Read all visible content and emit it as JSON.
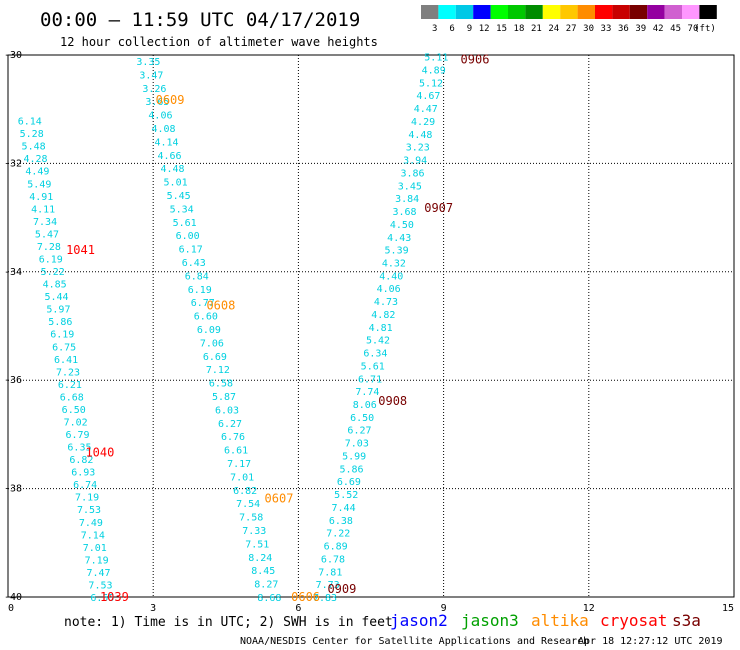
{
  "title": "00:00 – 11:59 UTC 04/17/2019",
  "subtitle": "12 hour collection of altimeter wave heights",
  "legend": {
    "unit": "(ft)",
    "bins": [
      {
        "label": "3",
        "color": "#7f7f7f"
      },
      {
        "label": "6",
        "color": "#00ffff"
      },
      {
        "label": "9",
        "color": "#00c8e6"
      },
      {
        "label": "12",
        "color": "#0000ff"
      },
      {
        "label": "15",
        "color": "#00ff00"
      },
      {
        "label": "18",
        "color": "#00c800"
      },
      {
        "label": "21",
        "color": "#008c00"
      },
      {
        "label": "24",
        "color": "#ffff00"
      },
      {
        "label": "27",
        "color": "#ffc800"
      },
      {
        "label": "30",
        "color": "#ff8c00"
      },
      {
        "label": "33",
        "color": "#ff0000"
      },
      {
        "label": "36",
        "color": "#c80000"
      },
      {
        "label": "39",
        "color": "#780000"
      },
      {
        "label": "42",
        "color": "#9400a0"
      },
      {
        "label": "45",
        "color": "#d060d0"
      },
      {
        "label": "70",
        "color": "#ff96ff"
      },
      {
        "label": "",
        "color": "#000000"
      }
    ]
  },
  "chart_data": {
    "type": "scatter",
    "xlim": [
      0,
      15
    ],
    "ylim": [
      -40,
      -30
    ],
    "x_ticks": [
      "0",
      "3",
      "6",
      "9",
      "12",
      "15"
    ],
    "y_ticks": [
      "-30",
      "-32",
      "-34",
      "-36",
      "-38",
      "-40"
    ],
    "grid": true,
    "value_color": "#00d0e0",
    "tracks": [
      {
        "start": [
          0.45,
          -31.21
        ],
        "end": [
          1.95,
          -40.0
        ],
        "values": [
          "6.14",
          "5.28",
          "5.48",
          "4.28",
          "4.49",
          "5.49",
          "4.91",
          "4.11",
          "7.34",
          "5.47",
          "7.28",
          "6.19",
          "5.22",
          "4.85",
          "5.44",
          "5.97",
          "5.86",
          "6.19",
          "6.75",
          "6.41",
          "7.23",
          "6.21",
          "6.68",
          "6.50",
          "7.02",
          "6.79",
          "6.35",
          "6.82",
          "6.93",
          "6.74",
          "7.19",
          "7.53",
          "7.49",
          "7.14",
          "7.01",
          "7.19",
          "7.47",
          "7.53",
          "6.55"
        ]
      },
      {
        "start": [
          2.9,
          -30.11
        ],
        "end": [
          5.4,
          -40.0
        ],
        "values": [
          "3.35",
          "3.47",
          "3.26",
          "3.65",
          "4.06",
          "4.08",
          "4.14",
          "4.66",
          "4.48",
          "5.01",
          "5.45",
          "5.34",
          "5.61",
          "6.00",
          "6.17",
          "6.43",
          "6.84",
          "6.19",
          "6.77",
          "6.60",
          "6.09",
          "7.06",
          "6.69",
          "7.12",
          "6.58",
          "5.87",
          "6.03",
          "6.27",
          "6.76",
          "6.61",
          "7.17",
          "7.01",
          "6.82",
          "7.54",
          "7.58",
          "7.33",
          "7.51",
          "8.24",
          "8.45",
          "8.27",
          "8.68"
        ]
      },
      {
        "start": [
          8.85,
          -30.03
        ],
        "end": [
          6.55,
          -40.0
        ],
        "values": [
          "5.11",
          "4.89",
          "5.12",
          "4.67",
          "4.47",
          "4.29",
          "4.48",
          "3.23",
          "3.94",
          "3.86",
          "3.45",
          "3.84",
          "3.68",
          "4.50",
          "4.43",
          "5.39",
          "4.32",
          "4.40",
          "4.06",
          "4.73",
          "4.82",
          "4.81",
          "5.42",
          "6.34",
          "5.61",
          "6.71",
          "7.74",
          "8.06",
          "6.50",
          "6.27",
          "7.03",
          "5.99",
          "5.86",
          "6.69",
          "5.52",
          "7.44",
          "6.38",
          "7.22",
          "6.89",
          "6.78",
          "7.81",
          "7.73",
          "7.83"
        ]
      }
    ],
    "time_labels": [
      {
        "text": "0906",
        "x": 9.35,
        "y": -30.08,
        "color": "#780000"
      },
      {
        "text": "0907",
        "x": 8.6,
        "y": -32.82,
        "color": "#780000"
      },
      {
        "text": "0908",
        "x": 7.65,
        "y": -36.38,
        "color": "#780000"
      },
      {
        "text": "0909",
        "x": 6.6,
        "y": -39.85,
        "color": "#780000"
      },
      {
        "text": "0609",
        "x": 3.05,
        "y": -30.83,
        "color": "#ff8c00"
      },
      {
        "text": "0608",
        "x": 4.1,
        "y": -34.62,
        "color": "#ff8c00"
      },
      {
        "text": "0607",
        "x": 5.3,
        "y": -38.18,
        "color": "#ff8c00"
      },
      {
        "text": "0606",
        "x": 5.85,
        "y": -40.0,
        "color": "#ff8c00"
      },
      {
        "text": "1041",
        "x": 1.2,
        "y": -33.6,
        "color": "#ff0000"
      },
      {
        "text": "1040",
        "x": 1.6,
        "y": -37.33,
        "color": "#ff0000"
      },
      {
        "text": "1039",
        "x": 1.9,
        "y": -40.0,
        "color": "#ff0000"
      }
    ]
  },
  "note": "note: 1) Time is in UTC; 2) SWH is in feet",
  "satellites": [
    {
      "name": "jason2",
      "color": "#0000ff"
    },
    {
      "name": "jason3",
      "color": "#00a000"
    },
    {
      "name": "altika",
      "color": "#ff8c00"
    },
    {
      "name": "cryosat",
      "color": "#ff0000"
    },
    {
      "name": "s3a",
      "color": "#780000"
    }
  ],
  "footer": {
    "org": "NOAA/NESDIS Center for Satellite Applications and Research",
    "timestamp": "Apr 18 12:27:12 UTC 2019"
  }
}
